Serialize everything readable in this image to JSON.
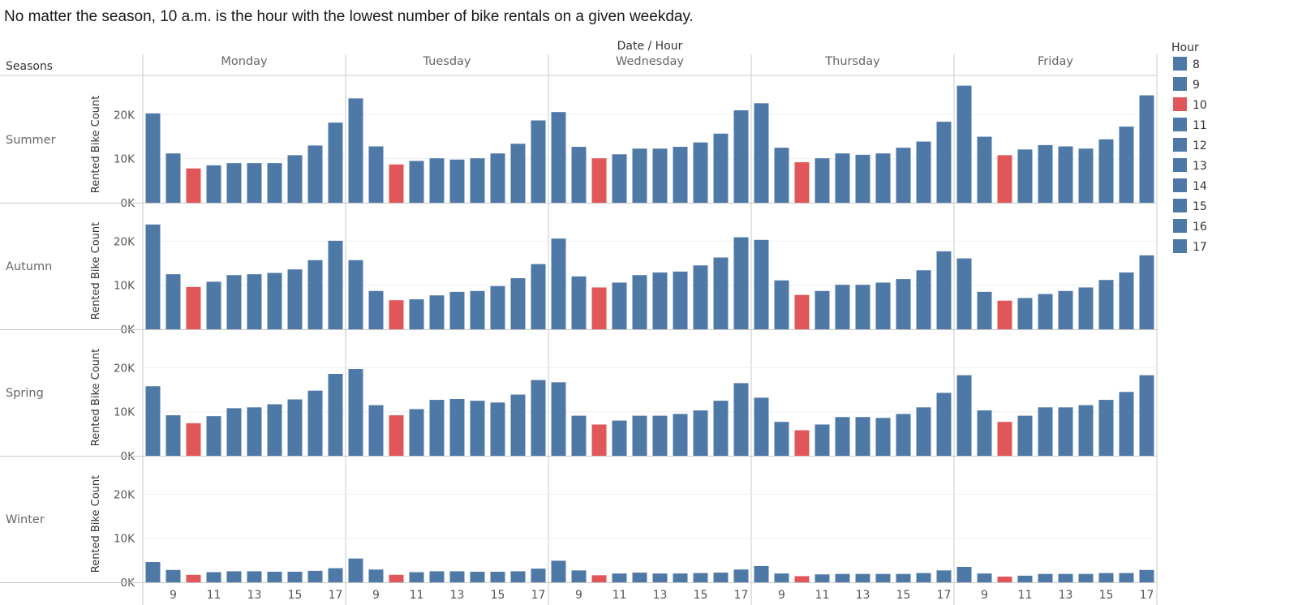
{
  "chart_data": {
    "type": "bar",
    "title": "No matter the season, 10 a.m. is the hour with the lowest number of bike rentals on a given weekday.",
    "column_header": "Date / Hour",
    "row_header": "Seasons",
    "ylabel": "Rented Bike Count",
    "ylim": [
      0,
      28000
    ],
    "yticks": [
      {
        "value": 0,
        "label": "0K"
      },
      {
        "value": 10000,
        "label": "10K"
      },
      {
        "value": 20000,
        "label": "20K"
      }
    ],
    "x_tick_labels": [
      "9",
      "11",
      "13",
      "15",
      "17"
    ],
    "hours": [
      8,
      9,
      10,
      11,
      12,
      13,
      14,
      15,
      16,
      17
    ],
    "days": [
      "Monday",
      "Tuesday",
      "Wednesday",
      "Thursday",
      "Friday"
    ],
    "seasons": [
      "Summer",
      "Autumn",
      "Spring",
      "Winter"
    ],
    "highlight_hour": 10,
    "colors": {
      "default": "#4e79a7",
      "highlight": "#e15759"
    },
    "legend": {
      "title": "Hour",
      "items": [
        "8",
        "9",
        "10",
        "11",
        "12",
        "13",
        "14",
        "15",
        "16",
        "17"
      ],
      "placement": "right"
    },
    "grid": true,
    "values": {
      "Summer": {
        "Monday": [
          20300,
          11200,
          7800,
          8500,
          9000,
          9000,
          9000,
          10800,
          13000,
          18200
        ],
        "Tuesday": [
          23700,
          12800,
          8700,
          9500,
          10100,
          9800,
          10100,
          11200,
          13400,
          18700
        ],
        "Wednesday": [
          20600,
          12700,
          10100,
          11000,
          12300,
          12300,
          12700,
          13700,
          15700,
          21000
        ],
        "Thursday": [
          22600,
          12500,
          9200,
          10100,
          11200,
          10900,
          11200,
          12500,
          13900,
          18400
        ],
        "Friday": [
          26600,
          15000,
          10800,
          12100,
          13100,
          12800,
          12300,
          14400,
          17300,
          24400
        ]
      },
      "Autumn": {
        "Monday": [
          23800,
          12500,
          9600,
          10800,
          12300,
          12500,
          12800,
          13600,
          15700,
          20100
        ],
        "Tuesday": [
          15700,
          8700,
          6600,
          6800,
          7700,
          8500,
          8700,
          9800,
          11600,
          14800
        ],
        "Wednesday": [
          20600,
          12000,
          9500,
          10600,
          12300,
          12900,
          13100,
          14500,
          16300,
          20900
        ],
        "Thursday": [
          20300,
          11100,
          7800,
          8700,
          10100,
          10100,
          10600,
          11400,
          13400,
          17700
        ],
        "Friday": [
          16100,
          8500,
          6500,
          7100,
          8000,
          8700,
          9500,
          11200,
          12900,
          16800
        ]
      },
      "Spring": {
        "Monday": [
          15800,
          9200,
          7400,
          9000,
          10800,
          11000,
          11700,
          12800,
          14800,
          18600
        ],
        "Tuesday": [
          19700,
          11500,
          9200,
          10600,
          12700,
          12900,
          12500,
          12100,
          13900,
          17200
        ],
        "Wednesday": [
          16700,
          9100,
          7100,
          8000,
          9100,
          9100,
          9500,
          10300,
          12500,
          16500
        ],
        "Thursday": [
          13200,
          7700,
          5800,
          7100,
          8800,
          8800,
          8600,
          9500,
          11000,
          14300
        ],
        "Friday": [
          18300,
          10300,
          7700,
          9100,
          11000,
          11000,
          11500,
          12700,
          14500,
          18300
        ]
      },
      "Winter": {
        "Monday": [
          4600,
          2800,
          1700,
          2300,
          2500,
          2500,
          2400,
          2400,
          2600,
          3200
        ],
        "Tuesday": [
          5400,
          2900,
          1700,
          2300,
          2500,
          2500,
          2400,
          2400,
          2500,
          3100
        ],
        "Wednesday": [
          4900,
          2700,
          1600,
          2000,
          2200,
          2000,
          2000,
          2100,
          2200,
          2900
        ],
        "Thursday": [
          3700,
          2000,
          1400,
          1800,
          1900,
          1900,
          1900,
          1900,
          2100,
          2700
        ],
        "Friday": [
          3500,
          2000,
          1300,
          1500,
          1900,
          1900,
          1900,
          2100,
          2100,
          2800
        ]
      }
    }
  }
}
